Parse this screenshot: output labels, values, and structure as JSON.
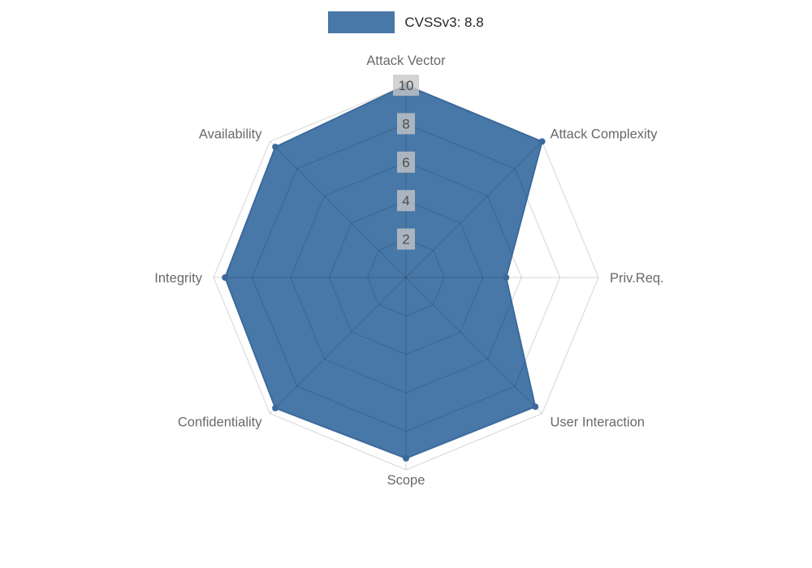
{
  "legend": {
    "label": "CVSSv3: 8.8"
  },
  "chart_data": {
    "type": "radar",
    "title": "CVSSv3: 8.8",
    "categories": [
      "Attack Vector",
      "Attack Complexity",
      "Priv.Req.",
      "User Interaction",
      "Scope",
      "Confidentiality",
      "Integrity",
      "Availability"
    ],
    "series": [
      {
        "name": "CVSSv3: 8.8",
        "values": [
          10,
          10,
          5.2,
          9.5,
          9.4,
          9.6,
          9.4,
          9.6
        ]
      }
    ],
    "scale": {
      "min": 0,
      "max": 10,
      "ticks": [
        2,
        4,
        6,
        8,
        10
      ]
    },
    "legend_position": "top",
    "grid": true,
    "colors": {
      "fill": "#4878a8",
      "line": "#3c699b",
      "grid": "rgba(0,0,0,0.16)",
      "tick_backdrop": "rgba(199,199,199,0.78)",
      "tick_text": "#4d4d4d",
      "axis_label": "#696969"
    }
  }
}
